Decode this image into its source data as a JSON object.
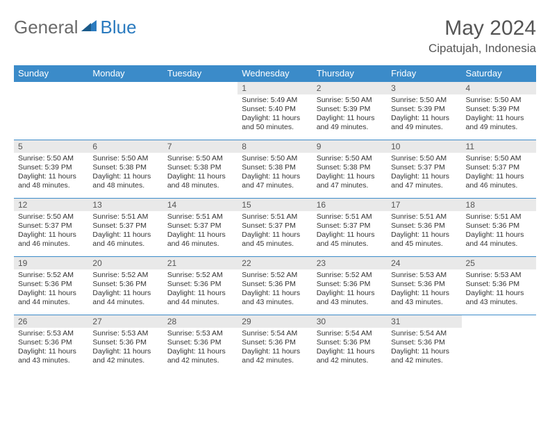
{
  "logo": {
    "text_general": "General",
    "text_blue": "Blue"
  },
  "title": "May 2024",
  "location": "Cipatujah, Indonesia",
  "colors": {
    "header_bg": "#3b8bc9",
    "header_text": "#ffffff",
    "daynum_bg": "#e9e9e9",
    "cell_border": "#3b8bc9",
    "logo_gray": "#6a6a6a",
    "logo_blue": "#2b7bbf"
  },
  "weekdays": [
    "Sunday",
    "Monday",
    "Tuesday",
    "Wednesday",
    "Thursday",
    "Friday",
    "Saturday"
  ],
  "weeks": [
    [
      null,
      null,
      null,
      {
        "n": "1",
        "sr": "5:49 AM",
        "ss": "5:40 PM",
        "dl": "11 hours and 50 minutes."
      },
      {
        "n": "2",
        "sr": "5:50 AM",
        "ss": "5:39 PM",
        "dl": "11 hours and 49 minutes."
      },
      {
        "n": "3",
        "sr": "5:50 AM",
        "ss": "5:39 PM",
        "dl": "11 hours and 49 minutes."
      },
      {
        "n": "4",
        "sr": "5:50 AM",
        "ss": "5:39 PM",
        "dl": "11 hours and 49 minutes."
      }
    ],
    [
      {
        "n": "5",
        "sr": "5:50 AM",
        "ss": "5:39 PM",
        "dl": "11 hours and 48 minutes."
      },
      {
        "n": "6",
        "sr": "5:50 AM",
        "ss": "5:38 PM",
        "dl": "11 hours and 48 minutes."
      },
      {
        "n": "7",
        "sr": "5:50 AM",
        "ss": "5:38 PM",
        "dl": "11 hours and 48 minutes."
      },
      {
        "n": "8",
        "sr": "5:50 AM",
        "ss": "5:38 PM",
        "dl": "11 hours and 47 minutes."
      },
      {
        "n": "9",
        "sr": "5:50 AM",
        "ss": "5:38 PM",
        "dl": "11 hours and 47 minutes."
      },
      {
        "n": "10",
        "sr": "5:50 AM",
        "ss": "5:37 PM",
        "dl": "11 hours and 47 minutes."
      },
      {
        "n": "11",
        "sr": "5:50 AM",
        "ss": "5:37 PM",
        "dl": "11 hours and 46 minutes."
      }
    ],
    [
      {
        "n": "12",
        "sr": "5:50 AM",
        "ss": "5:37 PM",
        "dl": "11 hours and 46 minutes."
      },
      {
        "n": "13",
        "sr": "5:51 AM",
        "ss": "5:37 PM",
        "dl": "11 hours and 46 minutes."
      },
      {
        "n": "14",
        "sr": "5:51 AM",
        "ss": "5:37 PM",
        "dl": "11 hours and 46 minutes."
      },
      {
        "n": "15",
        "sr": "5:51 AM",
        "ss": "5:37 PM",
        "dl": "11 hours and 45 minutes."
      },
      {
        "n": "16",
        "sr": "5:51 AM",
        "ss": "5:37 PM",
        "dl": "11 hours and 45 minutes."
      },
      {
        "n": "17",
        "sr": "5:51 AM",
        "ss": "5:36 PM",
        "dl": "11 hours and 45 minutes."
      },
      {
        "n": "18",
        "sr": "5:51 AM",
        "ss": "5:36 PM",
        "dl": "11 hours and 44 minutes."
      }
    ],
    [
      {
        "n": "19",
        "sr": "5:52 AM",
        "ss": "5:36 PM",
        "dl": "11 hours and 44 minutes."
      },
      {
        "n": "20",
        "sr": "5:52 AM",
        "ss": "5:36 PM",
        "dl": "11 hours and 44 minutes."
      },
      {
        "n": "21",
        "sr": "5:52 AM",
        "ss": "5:36 PM",
        "dl": "11 hours and 44 minutes."
      },
      {
        "n": "22",
        "sr": "5:52 AM",
        "ss": "5:36 PM",
        "dl": "11 hours and 43 minutes."
      },
      {
        "n": "23",
        "sr": "5:52 AM",
        "ss": "5:36 PM",
        "dl": "11 hours and 43 minutes."
      },
      {
        "n": "24",
        "sr": "5:53 AM",
        "ss": "5:36 PM",
        "dl": "11 hours and 43 minutes."
      },
      {
        "n": "25",
        "sr": "5:53 AM",
        "ss": "5:36 PM",
        "dl": "11 hours and 43 minutes."
      }
    ],
    [
      {
        "n": "26",
        "sr": "5:53 AM",
        "ss": "5:36 PM",
        "dl": "11 hours and 43 minutes."
      },
      {
        "n": "27",
        "sr": "5:53 AM",
        "ss": "5:36 PM",
        "dl": "11 hours and 42 minutes."
      },
      {
        "n": "28",
        "sr": "5:53 AM",
        "ss": "5:36 PM",
        "dl": "11 hours and 42 minutes."
      },
      {
        "n": "29",
        "sr": "5:54 AM",
        "ss": "5:36 PM",
        "dl": "11 hours and 42 minutes."
      },
      {
        "n": "30",
        "sr": "5:54 AM",
        "ss": "5:36 PM",
        "dl": "11 hours and 42 minutes."
      },
      {
        "n": "31",
        "sr": "5:54 AM",
        "ss": "5:36 PM",
        "dl": "11 hours and 42 minutes."
      },
      null
    ]
  ],
  "labels": {
    "sunrise": "Sunrise:",
    "sunset": "Sunset:",
    "daylight": "Daylight:"
  }
}
